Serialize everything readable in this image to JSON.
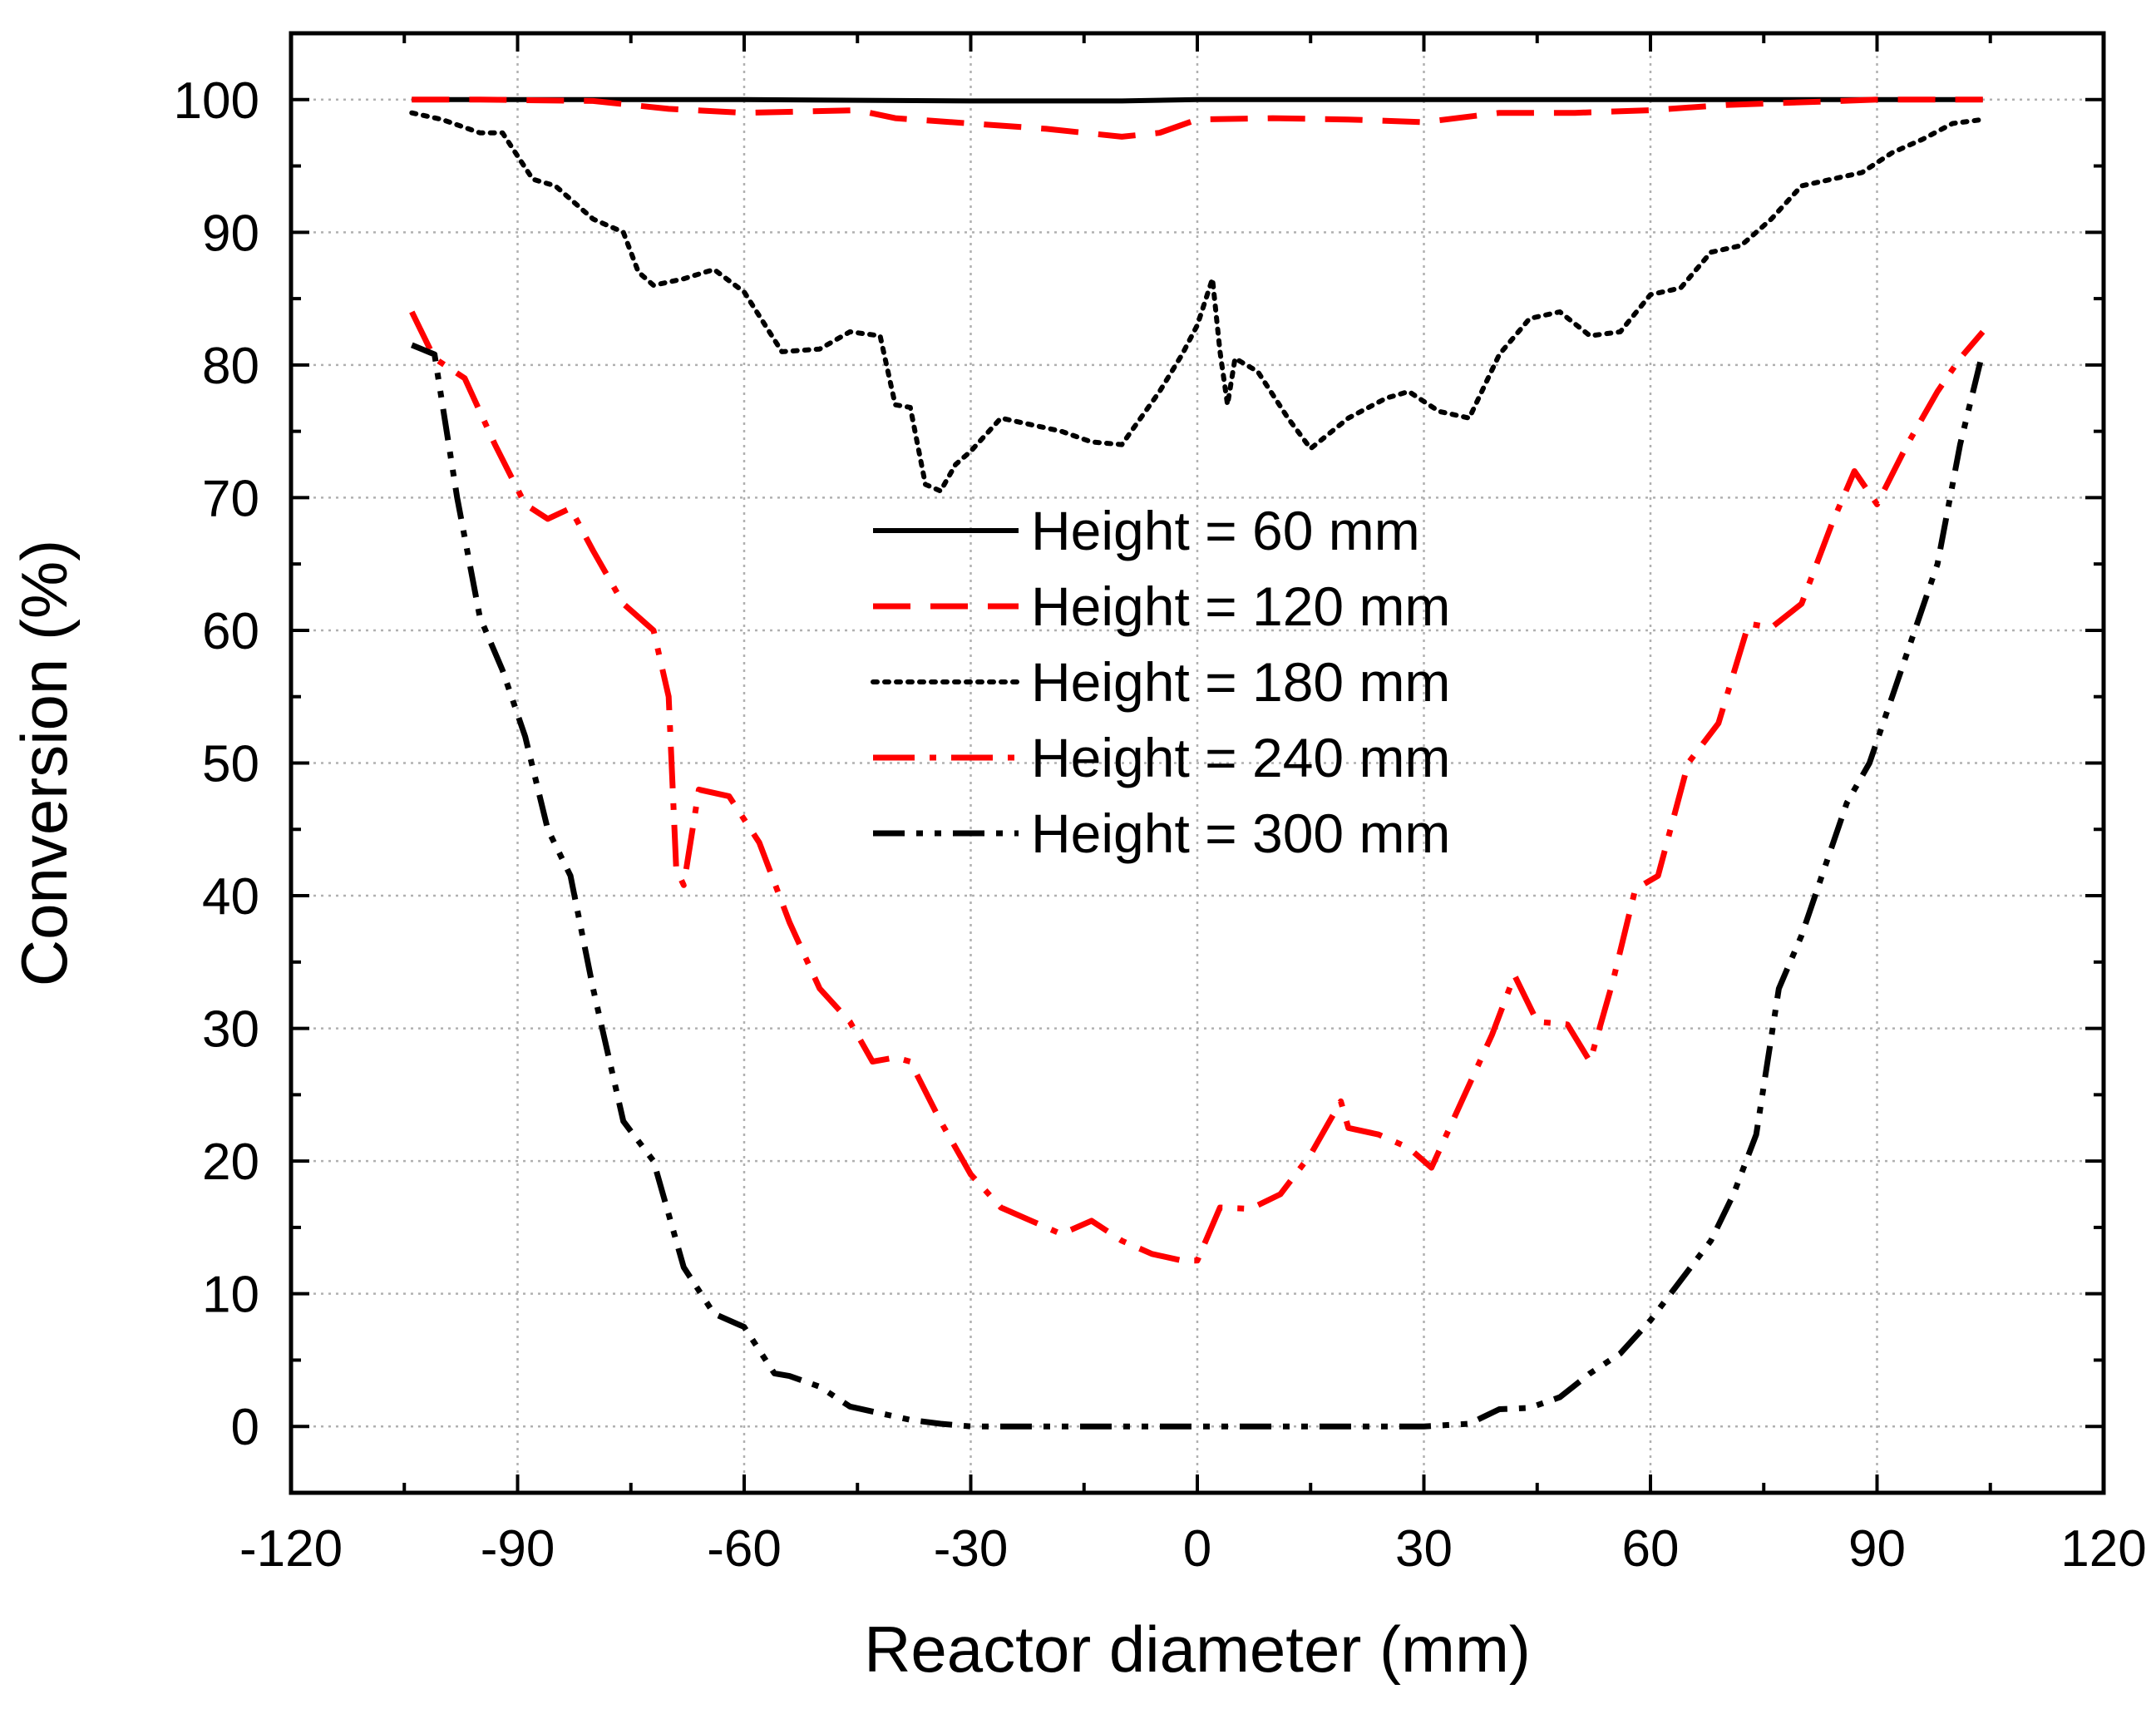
{
  "chart_data": {
    "type": "line",
    "title": "",
    "xlabel": "Reactor diameter (mm)",
    "ylabel": "Conversion (%)",
    "xlim": [
      -120,
      120
    ],
    "ylim": [
      -5,
      105
    ],
    "xticks": [
      -120,
      -90,
      -60,
      -30,
      0,
      30,
      60,
      90,
      120
    ],
    "yticks": [
      0,
      10,
      20,
      30,
      40,
      50,
      60,
      70,
      80,
      90,
      100
    ],
    "xtick_labels": [
      "-120",
      "-90",
      "-60",
      "-30",
      "0",
      "30",
      "60",
      "90",
      "120"
    ],
    "ytick_labels": [
      "0",
      "10",
      "20",
      "30",
      "40",
      "50",
      "60",
      "70",
      "80",
      "90",
      "100"
    ],
    "grid": true,
    "legend_position": "center",
    "series": [
      {
        "name": "Height = 60 mm",
        "color": "#000000",
        "style": "solid",
        "x": [
          -104,
          -90,
          -60,
          -30,
          -10,
          0,
          10,
          30,
          60,
          90,
          104
        ],
        "y": [
          100,
          100,
          100,
          99.9,
          99.9,
          100,
          100,
          100,
          100,
          100,
          100
        ]
      },
      {
        "name": "Height = 120 mm",
        "color": "#ff0000",
        "style": "dash",
        "x": [
          -104,
          -95,
          -80,
          -70,
          -60,
          -45,
          -40,
          -30,
          -20,
          -10,
          -5,
          0,
          10,
          20,
          30,
          40,
          50,
          60,
          70,
          80,
          90,
          104
        ],
        "y": [
          100,
          100,
          99.9,
          99.3,
          99,
          99.2,
          98.6,
          98.2,
          97.8,
          97.2,
          97.5,
          98.5,
          98.6,
          98.5,
          98.3,
          99,
          99,
          99.2,
          99.6,
          99.8,
          100,
          100
        ]
      },
      {
        "name": "Height = 180 mm",
        "color": "#000000",
        "style": "dot",
        "x": [
          -104,
          -100,
          -95,
          -92,
          -88,
          -85,
          -80,
          -76,
          -74,
          -72,
          -68,
          -64,
          -60,
          -55,
          -50,
          -46,
          -42,
          -40,
          -38,
          -36,
          -34,
          -32,
          -30,
          -26,
          -22,
          -18,
          -14,
          -10,
          -5,
          -2,
          0,
          2,
          3,
          4,
          5,
          8,
          12,
          15,
          20,
          25,
          28,
          32,
          36,
          40,
          44,
          48,
          52,
          56,
          60,
          64,
          68,
          72,
          76,
          80,
          84,
          88,
          92,
          96,
          100,
          104
        ],
        "y": [
          99,
          98.5,
          97.5,
          97.5,
          94,
          93.5,
          91,
          90,
          87,
          86,
          86.5,
          87.2,
          85.5,
          81,
          81.2,
          82.5,
          82.2,
          77,
          76.8,
          71,
          70.5,
          72.5,
          73.5,
          76,
          75.5,
          75,
          74.2,
          74,
          78,
          80.8,
          83,
          86.5,
          81,
          77,
          80.5,
          79.5,
          76,
          73.7,
          76,
          77.5,
          78,
          76.5,
          76,
          80.8,
          83.5,
          84,
          82.2,
          82.5,
          85.3,
          85.8,
          88.5,
          89,
          91,
          93.5,
          94,
          94.5,
          96,
          97,
          98.2,
          98.5
        ]
      },
      {
        "name": "Height = 240 mm",
        "color": "#ff0000",
        "style": "dashdot",
        "x": [
          -104,
          -101,
          -97,
          -93,
          -89,
          -86,
          -83,
          -80,
          -76,
          -72,
          -70,
          -69,
          -68,
          -66,
          -62,
          -58,
          -54,
          -50,
          -46,
          -43,
          -40,
          -38,
          -34,
          -30,
          -26,
          -22,
          -18,
          -14,
          -10,
          -6,
          -2,
          0,
          3,
          7,
          11,
          15,
          19,
          20,
          24,
          28,
          31,
          35,
          39,
          42,
          45,
          49,
          52,
          55,
          58,
          61,
          65,
          69,
          73,
          76,
          80,
          84,
          87,
          90,
          94,
          98,
          101,
          104
        ],
        "y": [
          84,
          80.5,
          79,
          74,
          69.5,
          68.4,
          69.2,
          66,
          62,
          60,
          55,
          42,
          40.8,
          48,
          47.5,
          44,
          38,
          33,
          30.5,
          27.5,
          27.8,
          27.5,
          23,
          19,
          16.5,
          15.5,
          14.5,
          15.5,
          14,
          13,
          12.5,
          12.5,
          16.5,
          16.4,
          17.5,
          20.5,
          24.5,
          22.5,
          22,
          21,
          19.5,
          24.5,
          29.5,
          34,
          30.5,
          30.3,
          27.5,
          33.5,
          40.5,
          41.5,
          50,
          53,
          60.5,
          60.2,
          62,
          68,
          72,
          69.5,
          74,
          78,
          80.5,
          82.5
        ]
      },
      {
        "name": "Height = 300 mm",
        "color": "#000000",
        "style": "dashdotdot",
        "x": [
          -104,
          -101,
          -98,
          -95,
          -92,
          -89,
          -86,
          -83,
          -80,
          -76,
          -72,
          -68,
          -64,
          -60,
          -56,
          -54,
          -50,
          -46,
          -42,
          -38,
          -34,
          -30,
          -20,
          -10,
          0,
          10,
          20,
          30,
          36,
          40,
          44,
          48,
          52,
          56,
          60,
          64,
          68,
          71,
          74,
          77,
          80,
          83,
          86,
          89,
          92,
          95,
          98,
          101,
          104
        ],
        "y": [
          81.5,
          80.8,
          70,
          61,
          57,
          52,
          45,
          41.5,
          33,
          23,
          20,
          12,
          8.5,
          7.5,
          4,
          3.8,
          3,
          1.5,
          1,
          0.5,
          0.2,
          0,
          0,
          0,
          0,
          0,
          0,
          0,
          0.2,
          1.3,
          1.4,
          2.2,
          4,
          5.5,
          8,
          11,
          14,
          17.5,
          22,
          33,
          37,
          42,
          47,
          50,
          55,
          60,
          65,
          74,
          81
        ]
      }
    ]
  }
}
